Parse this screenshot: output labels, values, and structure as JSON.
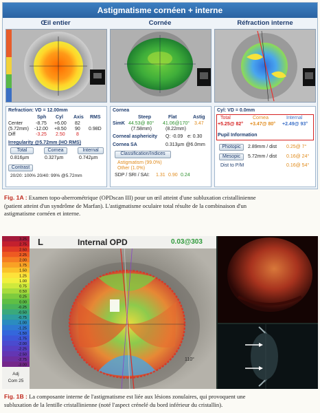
{
  "fig1a": {
    "title": "Astigmatisme cornéen + interne",
    "columns": [
      "Œil entier",
      "Cornée",
      "Réfraction interne"
    ],
    "whole_eye": {
      "refraction_label": "Refraction: VD = 12.00mm",
      "headers": [
        "Sph",
        "Cyl",
        "Axis",
        "RMS"
      ],
      "rows": [
        {
          "label": "Center",
          "sph": "-8.75",
          "cyl": "+6.00",
          "axis": "82",
          "rms": ""
        },
        {
          "label": "(5.72mm)",
          "sph": "-12.00",
          "cyl": "+8.50",
          "axis": "90",
          "rms": "0.98D"
        },
        {
          "label": "Diff",
          "sph": "-3.25",
          "cyl": "2.50",
          "axis": "8",
          "rms": ""
        }
      ],
      "irregularity_label": "Irregularity @5.72mm (HO RMS)",
      "irr_headers": [
        "Total",
        "Cornea",
        "Internal"
      ],
      "irr_values": [
        "0.816µm",
        "0.327µm",
        "0.742µm"
      ],
      "contrast_label": "Contrast",
      "contrast_values": "20/20: 100%  20/40: 99%  @5.72mm"
    },
    "cornea": {
      "label": "Cornea",
      "headers": [
        "Steep",
        "Flat",
        "Astig"
      ],
      "simk_label": "SimK",
      "simk_steep": "44.53@ 80°",
      "simk_flat": "41.06@170°",
      "simk_astig": "3.47",
      "simk_steep_mm": "(7.58mm)",
      "simk_flat_mm": "(8.22mm)",
      "asphericity_label": "Corneal asphericity",
      "asphericity_q": "Q: -0.09",
      "asphericity_e": "e: 0.30",
      "sa_label": "Cornea SA",
      "sa_value": "0.313µm @6.0mm",
      "classification_button": "Classification/Indices",
      "class_astig": "Astigmatism (99.0%)",
      "class_other": "Other (1.0%)",
      "sdp_label": "SDP / SRI / SAI:",
      "sdp_values": [
        "1.31",
        "0.90",
        "0.24"
      ]
    },
    "internal": {
      "cyl_label": "Cyl: VD = 0.0mm",
      "headers": [
        "Total",
        "Cornea",
        "Internal"
      ],
      "values": [
        "+5.25@ 82°",
        "+3.47@ 80°",
        "+2.49@ 93°"
      ],
      "pupil_label": "Pupil Information",
      "rows": [
        {
          "button": "Photopic",
          "value": "2.89mm / dist",
          "extra": "0.25@ 7°"
        },
        {
          "button": "Mesopic",
          "value": "5.72mm / dist",
          "extra": "0.16@ 24°"
        },
        {
          "button": "Dist to P/M",
          "value": "",
          "extra": "0.16@ 54°"
        }
      ]
    }
  },
  "caption_a": {
    "label": "Fig. 1A :",
    "lines": [
      "Examen topo-aberrométrique (OPDscan III) pour un œil atteint d'une subluxation cristallinienne",
      "(patient atteint d'un syndrôme de Marfan). L'astigmatisme oculaire total résulte de la combinaison d'un",
      "astigmatisme cornéen et interne."
    ]
  },
  "fig1b": {
    "eye_letter": "L",
    "map_title": "Internal OPD",
    "map_value": "0.03@303",
    "scale_values": [
      "3.25",
      "2.75",
      "2.50",
      "2.25",
      "2.00",
      "1.75",
      "1.50",
      "1.25",
      "1.00",
      "0.75",
      "0.50",
      "0.25",
      "0.00",
      "-0.25",
      "-0.50",
      "-0.75",
      "-1.00",
      "-1.25",
      "-1.50",
      "-1.75",
      "-2.00",
      "-2.25",
      "-2.50",
      "-2.75",
      "-3.00"
    ],
    "scale_footer": [
      "Adj",
      "Com 25"
    ],
    "axis_mark": "110°"
  },
  "caption_b": {
    "label": "Fig. 1B :",
    "lines": [
      "La composante interne de l'astigmatisme est liée aux lésions zonulaires, qui provoquent une",
      "subluxation de la lentille cristallinienne (noté l'aspect crénelé du bord inférieur du cristallin)."
    ]
  },
  "colors": {
    "header_blue": "#2a63a2",
    "caption_red": "#c0281c",
    "highlight_red": "#d52020",
    "value_green": "#3db03d"
  }
}
